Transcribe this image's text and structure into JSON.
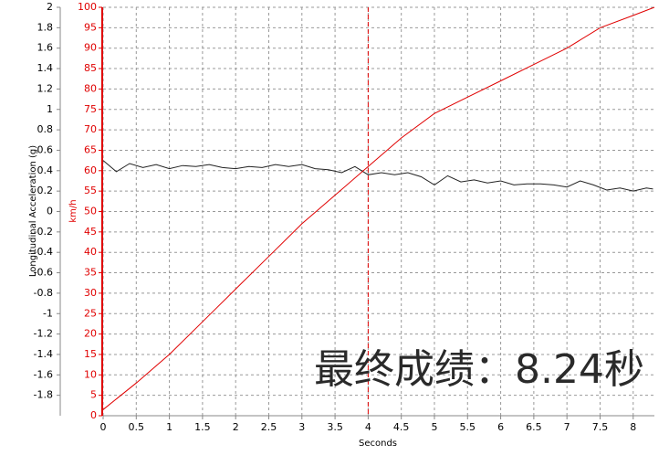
{
  "chart_data": {
    "type": "line",
    "xlabel": "Seconds",
    "ylabel": "Longitudinal Acceleration (g)",
    "y2label": "km/h",
    "annotation": "最终成绩：8.24秒",
    "xlim": [
      0,
      8.32
    ],
    "xticks": [
      0,
      0.5,
      1,
      1.5,
      2,
      2.5,
      3,
      3.5,
      4,
      4.5,
      5,
      5.5,
      6,
      6.5,
      7,
      7.5,
      8
    ],
    "ylim": [
      -2,
      2
    ],
    "yticks": [
      2,
      1.8,
      1.6,
      1.4,
      1.2,
      1,
      0.8,
      0.6,
      0.4,
      0.2,
      0,
      -0.2,
      -0.4,
      -0.6,
      -0.8,
      -1,
      -1.2,
      -1.4,
      -1.6,
      -1.8
    ],
    "y2lim": [
      0,
      100
    ],
    "y2ticks": [
      100,
      95,
      90,
      85,
      80,
      75,
      70,
      65,
      60,
      55,
      50,
      45,
      40,
      35,
      30,
      25,
      20,
      15,
      10,
      5,
      0
    ],
    "y2color": "#e00000",
    "grid": true,
    "cursor": 4,
    "cursor_color": "#e00000",
    "series": [
      {
        "name": "Longitudinal Acceleration",
        "color": "#222222",
        "x": [
          0,
          0.2,
          0.4,
          0.6,
          0.8,
          1,
          1.2,
          1.4,
          1.6,
          1.8,
          2,
          2.2,
          2.4,
          2.6,
          2.8,
          3,
          3.2,
          3.4,
          3.6,
          3.8,
          4,
          4.2,
          4.4,
          4.6,
          4.8,
          5,
          5.2,
          5.4,
          5.6,
          5.8,
          6,
          6.2,
          6.4,
          6.6,
          6.8,
          7,
          7.2,
          7.4,
          7.6,
          7.8,
          8,
          8.2,
          8.3
        ],
        "values": [
          0.5,
          0.39,
          0.47,
          0.43,
          0.46,
          0.42,
          0.45,
          0.44,
          0.46,
          0.43,
          0.42,
          0.44,
          0.43,
          0.46,
          0.44,
          0.46,
          0.42,
          0.41,
          0.38,
          0.44,
          0.36,
          0.38,
          0.36,
          0.38,
          0.34,
          0.26,
          0.35,
          0.29,
          0.31,
          0.28,
          0.3,
          0.26,
          0.27,
          0.27,
          0.26,
          0.24,
          0.3,
          0.26,
          0.21,
          0.23,
          0.2,
          0.23,
          0.22
        ]
      },
      {
        "name": "km/h",
        "color": "#e00000",
        "axis": "y2",
        "x": [
          0,
          0.5,
          1,
          1.5,
          2,
          2.5,
          3,
          3.5,
          4,
          4.5,
          5,
          5.5,
          6,
          6.5,
          7,
          7.5,
          8,
          8.32
        ],
        "values": [
          1.5,
          8,
          15,
          23,
          31,
          39,
          47,
          54,
          61,
          68,
          74,
          78,
          82,
          86,
          90,
          95,
          98,
          100
        ]
      }
    ]
  }
}
